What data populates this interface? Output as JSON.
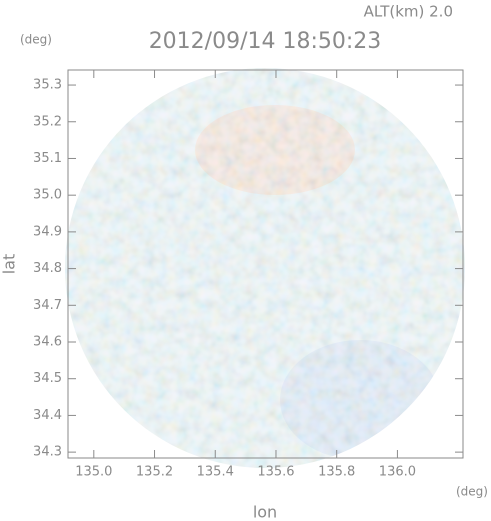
{
  "chart_data": {
    "type": "image",
    "title": "2012/09/14 18:50:23",
    "subtitle": "ALT(km) 2.0",
    "y_unit": "(deg)",
    "x_unit": "(deg)",
    "xlabel": "lon",
    "ylabel": "lat",
    "xlim": [
      134.915,
      136.216
    ],
    "ylim": [
      34.284,
      35.341
    ],
    "xticks": [
      {
        "value": 135.0,
        "label": "135.0"
      },
      135.2,
      135.4,
      135.6,
      135.8,
      {
        "value": 136.0,
        "label": "136.0"
      }
    ],
    "yticks": [
      34.3,
      34.4,
      34.5,
      34.6,
      34.7,
      34.8,
      34.9,
      {
        "value": 35.0,
        "label": "35.0"
      },
      35.1,
      35.2,
      35.3
    ]
  }
}
